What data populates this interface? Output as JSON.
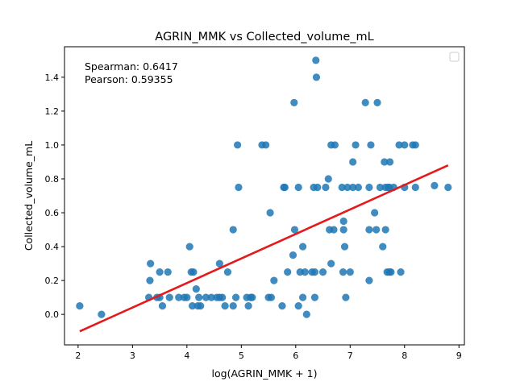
{
  "chart_data": {
    "type": "scatter",
    "title": "AGRIN_MMK vs Collected_volume_mL",
    "xlabel": "log(AGRIN_MMK + 1)",
    "ylabel": "Collected_volume_mL",
    "xlim": [
      1.75,
      9.1
    ],
    "ylim": [
      -0.18,
      1.58
    ],
    "xticks": [
      2,
      3,
      4,
      5,
      6,
      7,
      8,
      9
    ],
    "yticks": [
      0.0,
      0.2,
      0.4,
      0.6,
      0.8,
      1.0,
      1.2,
      1.4
    ],
    "yticklabels": [
      "0.0",
      "0.2",
      "0.4",
      "0.6",
      "0.8",
      "1.0",
      "1.2",
      "1.4"
    ],
    "grid": false,
    "legend": "upper-right (empty)",
    "annotations": [
      "Spearman: 0.6417",
      "Pearson: 0.59355"
    ],
    "point_color": "#1f77b4",
    "trendline_color": "#e41a1c",
    "trendline": {
      "x": [
        2.03,
        8.8
      ],
      "y": [
        -0.1,
        0.88
      ]
    },
    "x": [
      2.03,
      2.43,
      3.3,
      3.33,
      3.32,
      3.45,
      3.5,
      3.5,
      3.55,
      3.65,
      3.68,
      3.85,
      3.95,
      4.0,
      4.05,
      4.08,
      4.1,
      4.12,
      4.17,
      4.2,
      4.22,
      4.25,
      4.35,
      4.45,
      4.55,
      4.6,
      4.6,
      4.65,
      4.7,
      4.75,
      4.85,
      4.85,
      4.9,
      4.93,
      4.95,
      5.1,
      5.13,
      5.17,
      5.2,
      5.38,
      5.45,
      5.5,
      5.53,
      5.55,
      5.6,
      5.75,
      5.78,
      5.8,
      5.85,
      5.95,
      5.97,
      5.98,
      6.05,
      6.05,
      6.08,
      6.13,
      6.13,
      6.17,
      6.2,
      6.3,
      6.33,
      6.35,
      6.35,
      6.37,
      6.38,
      6.4,
      6.5,
      6.55,
      6.6,
      6.62,
      6.65,
      6.65,
      6.7,
      6.72,
      6.85,
      6.87,
      6.88,
      6.88,
      6.9,
      6.92,
      6.95,
      7.0,
      7.05,
      7.05,
      7.1,
      7.15,
      7.28,
      7.35,
      7.35,
      7.35,
      7.38,
      7.45,
      7.48,
      7.5,
      7.55,
      7.6,
      7.63,
      7.65,
      7.65,
      7.68,
      7.7,
      7.72,
      7.72,
      7.73,
      7.75,
      7.8,
      7.9,
      7.93,
      8.0,
      8.0,
      8.15,
      8.2,
      8.2,
      8.55,
      8.8
    ],
    "y": [
      0.05,
      0.0,
      0.1,
      0.3,
      0.2,
      0.1,
      0.1,
      0.25,
      0.05,
      0.25,
      0.1,
      0.1,
      0.1,
      0.1,
      0.4,
      0.25,
      0.05,
      0.25,
      0.15,
      0.05,
      0.1,
      0.05,
      0.1,
      0.1,
      0.1,
      0.3,
      0.1,
      0.1,
      0.05,
      0.25,
      0.5,
      0.05,
      0.1,
      1.0,
      0.75,
      0.1,
      0.05,
      0.1,
      0.1,
      1.0,
      1.0,
      0.1,
      0.6,
      0.1,
      0.2,
      0.05,
      0.75,
      0.75,
      0.25,
      0.35,
      1.25,
      0.5,
      0.05,
      0.75,
      0.25,
      0.1,
      0.4,
      0.25,
      0.0,
      0.25,
      0.75,
      0.1,
      0.25,
      1.5,
      1.4,
      0.75,
      0.25,
      0.75,
      0.8,
      0.5,
      0.3,
      1.0,
      0.5,
      1.0,
      0.75,
      0.25,
      0.5,
      0.55,
      0.4,
      0.1,
      0.75,
      0.25,
      0.75,
      0.9,
      1.0,
      0.75,
      1.25,
      0.2,
      0.5,
      0.75,
      1.0,
      0.6,
      0.5,
      1.25,
      0.75,
      0.4,
      0.9,
      0.5,
      0.75,
      0.25,
      0.75,
      0.25,
      0.75,
      0.9,
      0.25,
      0.75,
      1.0,
      0.25,
      1.0,
      0.75,
      1.0,
      1.0,
      0.75,
      0.76,
      0.75
    ]
  }
}
